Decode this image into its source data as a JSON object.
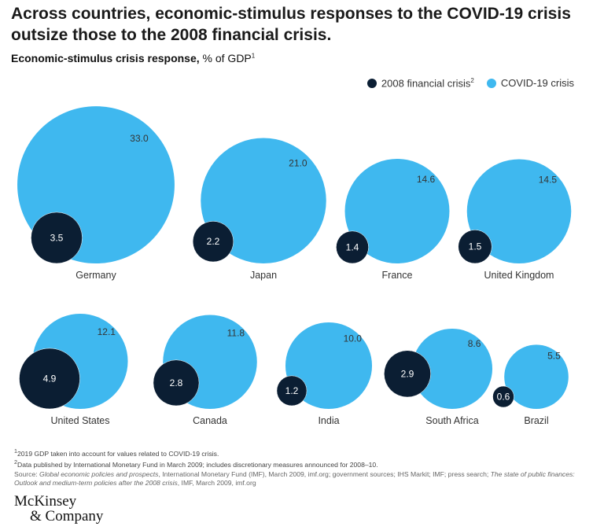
{
  "title": "Across countries, economic-stimulus responses to the COVID-19 crisis outsize those to the 2008 financial crisis.",
  "subtitle": {
    "bold": "Economic-stimulus crisis response,",
    "rest": " % of GDP",
    "sup": "1"
  },
  "chart_data": {
    "type": "bubble",
    "title": "Economic-stimulus crisis response, % of GDP",
    "categories": [
      "Germany",
      "Japan",
      "France",
      "United Kingdom",
      "United States",
      "Canada",
      "India",
      "South Africa",
      "Brazil"
    ],
    "series": [
      {
        "name": "2008 financial crisis",
        "color": "#0b1e33",
        "values": [
          3.5,
          2.2,
          1.4,
          1.5,
          4.9,
          2.8,
          1.2,
          2.9,
          0.6
        ],
        "labels": [
          "3.5",
          "2.2",
          "1.4",
          "1.5",
          "4.9",
          "2.8",
          "1.2",
          "2.9",
          "0.6"
        ]
      },
      {
        "name": "COVID-19 crisis",
        "color": "#3fb8ef",
        "values": [
          33.0,
          21.0,
          14.6,
          14.5,
          12.1,
          11.8,
          10.0,
          8.6,
          5.5
        ],
        "labels": [
          "33.0",
          "21.0",
          "14.6",
          "14.5",
          "12.1",
          "11.8",
          "10.0",
          "8.6",
          "5.5"
        ]
      }
    ],
    "legend": "top-right"
  },
  "legend": {
    "item1": "2008 financial crisis",
    "item1_sup": "2",
    "item2": "COVID-19 crisis"
  },
  "notes": {
    "n1": "2019 GDP taken into account for values related to COVID-19 crisis.",
    "n2": "Data published by International Monetary Fund in March 2009; includes discretionary measures announced for 2008–10.",
    "source_prefix": "Source: ",
    "source_i1": "Global economic policies and prospects",
    "source_mid": ", International Monetary Fund (IMF), March 2009, imf.org; government sources; IHS Markit; IMF; press search; ",
    "source_i2": "The state of public finances: Outlook and medium-term policies after the 2008 crisis",
    "source_end": ", IMF, March 2009, imf.org"
  },
  "logo": {
    "line1": "McKinsey",
    "line2": "& Company"
  }
}
